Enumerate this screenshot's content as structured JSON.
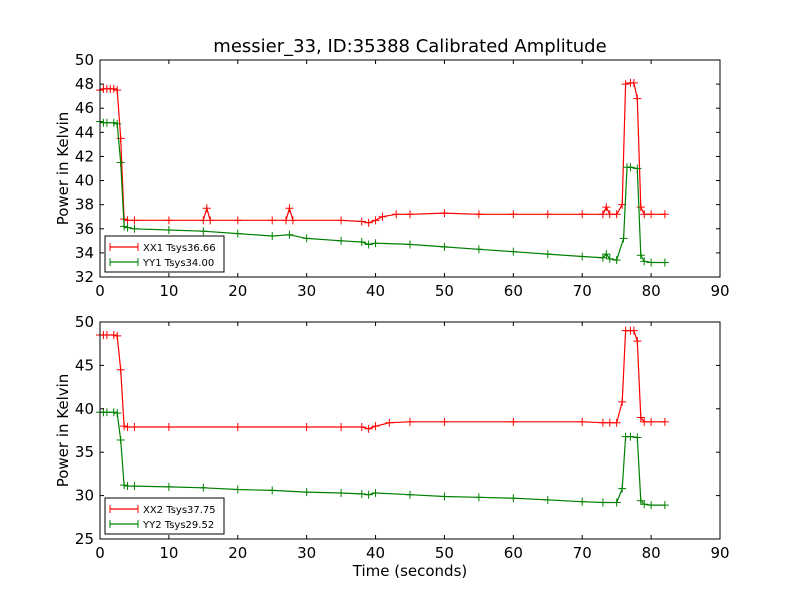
{
  "chart_data": [
    {
      "type": "line",
      "title": "messier_33, ID:35388 Calibrated Amplitude",
      "xlabel": "",
      "ylabel": "Power in Kelvin",
      "xlim": [
        0,
        90
      ],
      "ylim": [
        32,
        50
      ],
      "xticks": [
        "0",
        "10",
        "20",
        "30",
        "40",
        "50",
        "60",
        "70",
        "80",
        "90"
      ],
      "yticks": [
        "32",
        "34",
        "36",
        "38",
        "40",
        "42",
        "44",
        "46",
        "48",
        "50"
      ],
      "legend_position": "lower-left",
      "marker": "plus",
      "series": [
        {
          "name": "XX1 Tsys36.66",
          "color": "#ff0000",
          "points": [
            [
              0,
              47.5
            ],
            [
              0.5,
              47.6
            ],
            [
              1,
              47.6
            ],
            [
              1.5,
              47.6
            ],
            [
              2,
              47.6
            ],
            [
              2.5,
              47.5
            ],
            [
              3,
              43.5
            ],
            [
              3.5,
              36.8
            ],
            [
              4,
              36.7
            ],
            [
              5,
              36.7
            ],
            [
              10,
              36.7
            ],
            [
              15,
              36.7
            ],
            [
              15.5,
              37.7
            ],
            [
              16,
              36.7
            ],
            [
              20,
              36.7
            ],
            [
              25,
              36.7
            ],
            [
              27,
              36.7
            ],
            [
              27.5,
              37.7
            ],
            [
              28,
              36.7
            ],
            [
              35,
              36.7
            ],
            [
              38,
              36.6
            ],
            [
              39,
              36.5
            ],
            [
              40,
              36.7
            ],
            [
              41,
              37.0
            ],
            [
              43,
              37.2
            ],
            [
              45,
              37.2
            ],
            [
              50,
              37.3
            ],
            [
              55,
              37.2
            ],
            [
              60,
              37.2
            ],
            [
              65,
              37.2
            ],
            [
              70,
              37.2
            ],
            [
              73,
              37.2
            ],
            [
              73.5,
              37.8
            ],
            [
              74,
              37.2
            ],
            [
              75,
              37.2
            ],
            [
              75.8,
              38.0
            ],
            [
              76.3,
              48.0
            ],
            [
              77,
              48.1
            ],
            [
              77.5,
              48.1
            ],
            [
              78,
              46.8
            ],
            [
              78.5,
              37.8
            ],
            [
              79,
              37.2
            ],
            [
              80,
              37.2
            ],
            [
              82,
              37.2
            ]
          ]
        },
        {
          "name": "YY1 Tsys34.00",
          "color": "#008000",
          "points": [
            [
              0,
              44.9
            ],
            [
              0.5,
              44.8
            ],
            [
              1,
              44.8
            ],
            [
              2,
              44.8
            ],
            [
              2.5,
              44.7
            ],
            [
              3,
              41.5
            ],
            [
              3.5,
              36.2
            ],
            [
              4,
              36.1
            ],
            [
              5,
              36.0
            ],
            [
              10,
              35.9
            ],
            [
              15,
              35.8
            ],
            [
              20,
              35.6
            ],
            [
              25,
              35.4
            ],
            [
              27.5,
              35.5
            ],
            [
              30,
              35.2
            ],
            [
              35,
              35.0
            ],
            [
              38,
              34.9
            ],
            [
              39,
              34.7
            ],
            [
              40,
              34.8
            ],
            [
              45,
              34.7
            ],
            [
              50,
              34.5
            ],
            [
              55,
              34.3
            ],
            [
              60,
              34.1
            ],
            [
              65,
              33.9
            ],
            [
              70,
              33.7
            ],
            [
              73,
              33.6
            ],
            [
              73.5,
              33.9
            ],
            [
              74,
              33.5
            ],
            [
              75,
              33.4
            ],
            [
              76,
              35.2
            ],
            [
              76.5,
              41.1
            ],
            [
              77,
              41.1
            ],
            [
              78,
              41.0
            ],
            [
              78.5,
              33.8
            ],
            [
              79,
              33.3
            ],
            [
              80,
              33.2
            ],
            [
              82,
              33.2
            ]
          ]
        }
      ]
    },
    {
      "type": "line",
      "title": "",
      "xlabel": "Time (seconds)",
      "ylabel": "Power in Kelvin",
      "xlim": [
        0,
        90
      ],
      "ylim": [
        25,
        50
      ],
      "xticks": [
        "0",
        "10",
        "20",
        "30",
        "40",
        "50",
        "60",
        "70",
        "80",
        "90"
      ],
      "yticks": [
        "25",
        "30",
        "35",
        "40",
        "45",
        "50"
      ],
      "legend_position": "lower-left",
      "marker": "plus",
      "series": [
        {
          "name": "XX2 Tsys37.75",
          "color": "#ff0000",
          "points": [
            [
              0,
              48.5
            ],
            [
              0.5,
              48.5
            ],
            [
              1,
              48.5
            ],
            [
              2,
              48.5
            ],
            [
              2.5,
              48.4
            ],
            [
              3,
              44.5
            ],
            [
              3.5,
              38.0
            ],
            [
              4,
              37.9
            ],
            [
              5,
              37.9
            ],
            [
              10,
              37.9
            ],
            [
              20,
              37.9
            ],
            [
              30,
              37.9
            ],
            [
              35,
              37.9
            ],
            [
              38,
              37.9
            ],
            [
              39,
              37.7
            ],
            [
              40,
              38.0
            ],
            [
              42,
              38.4
            ],
            [
              45,
              38.5
            ],
            [
              50,
              38.5
            ],
            [
              60,
              38.5
            ],
            [
              70,
              38.5
            ],
            [
              73,
              38.4
            ],
            [
              74,
              38.4
            ],
            [
              75,
              38.4
            ],
            [
              75.8,
              40.8
            ],
            [
              76.3,
              49.0
            ],
            [
              77,
              49.0
            ],
            [
              77.5,
              49.0
            ],
            [
              78,
              47.8
            ],
            [
              78.5,
              39.0
            ],
            [
              79,
              38.5
            ],
            [
              80,
              38.5
            ],
            [
              82,
              38.5
            ]
          ]
        },
        {
          "name": "YY2 Tsys29.52",
          "color": "#008000",
          "points": [
            [
              0,
              39.6
            ],
            [
              0.5,
              39.6
            ],
            [
              1,
              39.6
            ],
            [
              2,
              39.6
            ],
            [
              2.5,
              39.5
            ],
            [
              3,
              36.4
            ],
            [
              3.5,
              31.2
            ],
            [
              4,
              31.1
            ],
            [
              5,
              31.1
            ],
            [
              10,
              31.0
            ],
            [
              15,
              30.9
            ],
            [
              20,
              30.7
            ],
            [
              25,
              30.6
            ],
            [
              30,
              30.4
            ],
            [
              35,
              30.3
            ],
            [
              38,
              30.2
            ],
            [
              39,
              30.1
            ],
            [
              40,
              30.3
            ],
            [
              45,
              30.1
            ],
            [
              50,
              29.9
            ],
            [
              55,
              29.8
            ],
            [
              60,
              29.7
            ],
            [
              65,
              29.5
            ],
            [
              70,
              29.3
            ],
            [
              73,
              29.2
            ],
            [
              75,
              29.2
            ],
            [
              75.8,
              30.8
            ],
            [
              76.3,
              36.8
            ],
            [
              77,
              36.8
            ],
            [
              78,
              36.7
            ],
            [
              78.5,
              29.4
            ],
            [
              79,
              29.0
            ],
            [
              80,
              28.9
            ],
            [
              82,
              28.9
            ]
          ]
        }
      ]
    }
  ]
}
